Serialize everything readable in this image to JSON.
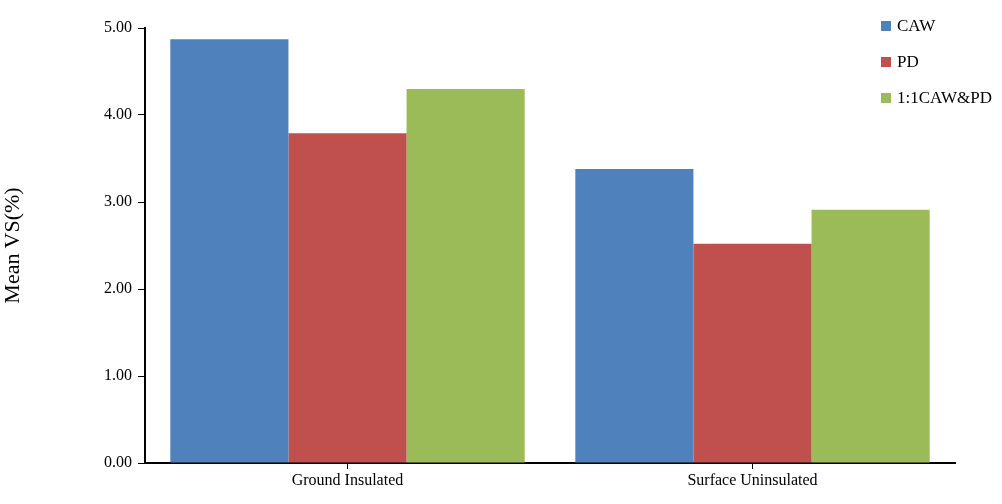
{
  "chart_data": {
    "type": "bar",
    "ylabel": "Mean VS(%)",
    "categories": [
      "Ground Insulated",
      "Surface Uninsulated"
    ],
    "series": [
      {
        "name": "CAW",
        "color": "#4f81bd",
        "values": [
          4.87,
          3.38
        ]
      },
      {
        "name": "PD",
        "color": "#c0504d",
        "values": [
          3.79,
          2.52
        ]
      },
      {
        "name": "1:1CAW&PD",
        "color": "#9bbb59",
        "values": [
          4.3,
          2.91
        ]
      }
    ],
    "ylim": [
      0,
      5
    ],
    "yticks": [
      {
        "value": 0,
        "label": "0.00"
      },
      {
        "value": 1,
        "label": "1.00"
      },
      {
        "value": 2,
        "label": "2.00"
      },
      {
        "value": 3,
        "label": "3.00"
      },
      {
        "value": 4,
        "label": "4.00"
      },
      {
        "value": 5,
        "label": "5.00"
      }
    ],
    "grid": false,
    "legend": "top right"
  }
}
